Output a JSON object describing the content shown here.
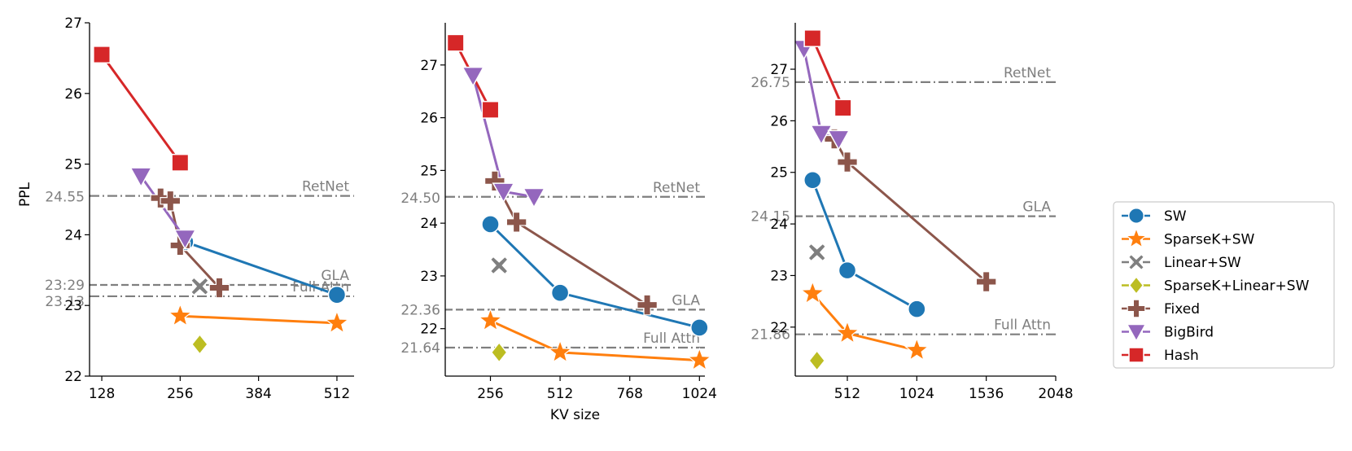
{
  "chart_data": [
    {
      "type": "line",
      "ylabel": "PPL",
      "xlabel": "",
      "xlim": [
        108,
        540
      ],
      "ylim": [
        22,
        27
      ],
      "xticks": [
        "128",
        "256",
        "384",
        "512"
      ],
      "yticks": [
        "22",
        "23",
        "24",
        "25",
        "26",
        "27"
      ],
      "reference_lines": [
        {
          "name": "RetNet",
          "value": 24.55,
          "value_label": "24.55",
          "style": "dashdot"
        },
        {
          "name": "GLA",
          "value": 23.29,
          "value_label": "23:29",
          "style": "dashed"
        },
        {
          "name": "Full Attn",
          "value": 23.13,
          "value_label": "23.13",
          "style": "dashdot"
        }
      ],
      "series": [
        {
          "name": "SW",
          "points": [
            [
              264,
              23.9
            ],
            [
              512,
              23.15
            ]
          ]
        },
        {
          "name": "SparseK+SW",
          "points": [
            [
              256,
              22.85
            ],
            [
              512,
              22.75
            ]
          ]
        },
        {
          "name": "Linear+SW",
          "points": [
            [
              288,
              23.27
            ]
          ]
        },
        {
          "name": "SparseK+Linear+SW",
          "points": [
            [
              288,
              22.45
            ]
          ]
        },
        {
          "name": "Fixed",
          "points": [
            [
              224,
              24.52
            ],
            [
              240,
              24.48
            ],
            [
              256,
              23.85
            ],
            [
              320,
              23.25
            ]
          ]
        },
        {
          "name": "BigBird",
          "points": [
            [
              192,
              24.83
            ],
            [
              264,
              23.95
            ]
          ]
        },
        {
          "name": "Hash",
          "points": [
            [
              128,
              26.55
            ],
            [
              256,
              25.02
            ]
          ]
        }
      ]
    },
    {
      "type": "line",
      "ylabel": "",
      "xlabel": "KV size",
      "xlim": [
        90,
        1044
      ],
      "ylim": [
        21.1,
        27.8
      ],
      "xticks": [
        "256",
        "512",
        "768",
        "1024"
      ],
      "yticks": [
        "22",
        "23",
        "24",
        "25",
        "26",
        "27"
      ],
      "reference_lines": [
        {
          "name": "RetNet",
          "value": 24.5,
          "value_label": "24.50",
          "style": "dashdot"
        },
        {
          "name": "GLA",
          "value": 22.36,
          "value_label": "22.36",
          "style": "dashed"
        },
        {
          "name": "Full Attn",
          "value": 21.64,
          "value_label": "21.64",
          "style": "dashdot"
        }
      ],
      "series": [
        {
          "name": "SW",
          "points": [
            [
              256,
              23.98
            ],
            [
              512,
              22.68
            ],
            [
              1024,
              22.02
            ]
          ]
        },
        {
          "name": "SparseK+SW",
          "points": [
            [
              256,
              22.15
            ],
            [
              512,
              21.55
            ],
            [
              1024,
              21.4
            ]
          ]
        },
        {
          "name": "Linear+SW",
          "points": [
            [
              288,
              23.2
            ]
          ]
        },
        {
          "name": "SparseK+Linear+SW",
          "points": [
            [
              288,
              21.55
            ]
          ]
        },
        {
          "name": "Fixed",
          "points": [
            [
              272,
              24.8
            ],
            [
              352,
              24.02
            ],
            [
              832,
              22.45
            ]
          ]
        },
        {
          "name": "BigBird",
          "points": [
            [
              192,
              26.8
            ],
            [
              304,
              24.6
            ],
            [
              416,
              24.5
            ]
          ]
        },
        {
          "name": "Hash",
          "points": [
            [
              128,
              27.42
            ],
            [
              256,
              26.15
            ]
          ]
        }
      ]
    },
    {
      "type": "line",
      "ylabel": "",
      "xlabel": "",
      "xlim": [
        128,
        2048
      ],
      "ylim": [
        21.05,
        27.9
      ],
      "xticks": [
        "512",
        "1024",
        "1536",
        "2048"
      ],
      "yticks": [
        "22",
        "23",
        "24",
        "25",
        "26",
        "27"
      ],
      "reference_lines": [
        {
          "name": "RetNet",
          "value": 26.75,
          "value_label": "26.75",
          "style": "dashdot"
        },
        {
          "name": "GLA",
          "value": 24.15,
          "value_label": "24.15",
          "style": "dashed"
        },
        {
          "name": "Full Attn",
          "value": 21.86,
          "value_label": "21.86",
          "style": "dashdot"
        }
      ],
      "series": [
        {
          "name": "SW",
          "points": [
            [
              256,
              24.85
            ],
            [
              512,
              23.1
            ],
            [
              1024,
              22.35
            ]
          ]
        },
        {
          "name": "SparseK+SW",
          "points": [
            [
              256,
              22.65
            ],
            [
              512,
              21.88
            ],
            [
              1024,
              21.55
            ]
          ]
        },
        {
          "name": "Linear+SW",
          "points": [
            [
              288,
              23.45
            ]
          ]
        },
        {
          "name": "SparseK+Linear+SW",
          "points": [
            [
              288,
              21.35
            ]
          ]
        },
        {
          "name": "Fixed",
          "points": [
            [
              416,
              25.65
            ],
            [
              512,
              25.2
            ],
            [
              1536,
              22.88
            ]
          ]
        },
        {
          "name": "BigBird",
          "points": [
            [
              192,
              27.4
            ],
            [
              320,
              25.75
            ],
            [
              448,
              25.65
            ]
          ]
        },
        {
          "name": "Hash",
          "points": [
            [
              256,
              27.6
            ],
            [
              480,
              26.25
            ]
          ]
        }
      ]
    }
  ],
  "legend": {
    "placement": "right",
    "entries": [
      {
        "name": "SW",
        "color": "#1f77b4",
        "marker": "circle"
      },
      {
        "name": "SparseK+SW",
        "color": "#ff7f0e",
        "marker": "star"
      },
      {
        "name": "Linear+SW",
        "color": "#7f7f7f",
        "marker": "x"
      },
      {
        "name": "SparseK+Linear+SW",
        "color": "#bcbd22",
        "marker": "diamond"
      },
      {
        "name": "Fixed",
        "color": "#8c564b",
        "marker": "plus"
      },
      {
        "name": "BigBird",
        "color": "#9467bd",
        "marker": "triangle-down"
      },
      {
        "name": "Hash",
        "color": "#d62728",
        "marker": "square"
      }
    ]
  },
  "reference_line_color": "#7f7f7f"
}
